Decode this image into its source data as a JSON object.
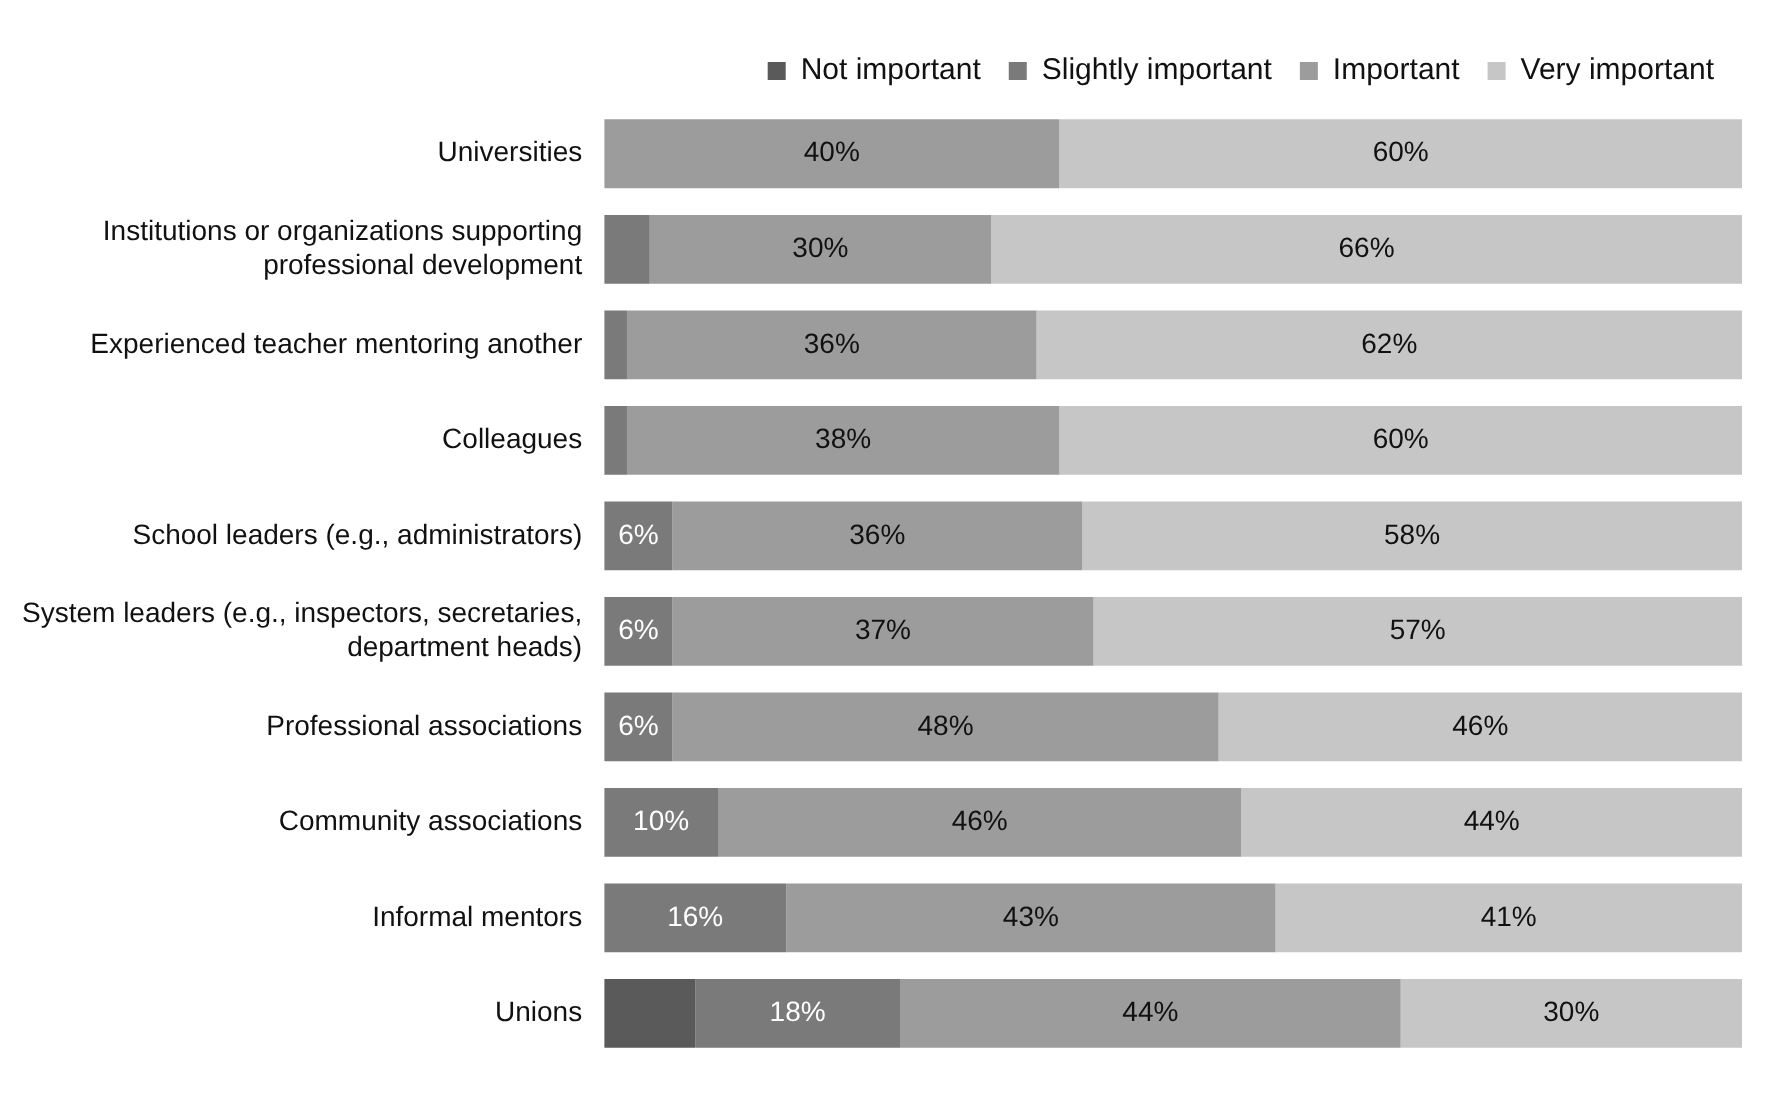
{
  "chart_data": {
    "type": "bar",
    "orientation": "horizontal",
    "stacked": true,
    "legend": "top right",
    "categories": [
      "Universities",
      "Institutions or organizations supporting professional development",
      "Experienced teacher mentoring another",
      "Colleagues",
      "School leaders (e.g., administrators)",
      "System leaders (e.g., inspectors, secretaries, department heads)",
      "Professional associations",
      "Community associations",
      "Informal mentors",
      "Unions"
    ],
    "series": [
      {
        "name": "Not important",
        "color": "#5a5a5a",
        "values": [
          0,
          0,
          0,
          0,
          0,
          0,
          0,
          0,
          0,
          8
        ],
        "value_labels": [
          null,
          null,
          null,
          null,
          null,
          null,
          null,
          null,
          null,
          null
        ]
      },
      {
        "name": "Slightly important",
        "color": "#7a7a7a",
        "values": [
          0,
          4,
          2,
          2,
          6,
          6,
          6,
          10,
          16,
          18
        ],
        "value_labels": [
          null,
          null,
          null,
          null,
          "6%",
          "6%",
          "6%",
          "10%",
          "16%",
          "18%"
        ]
      },
      {
        "name": "Important",
        "color": "#9c9c9c",
        "values": [
          40,
          30,
          36,
          38,
          36,
          37,
          48,
          46,
          43,
          44
        ],
        "value_labels": [
          "40%",
          "30%",
          "36%",
          "38%",
          "36%",
          "37%",
          "48%",
          "46%",
          "43%",
          "44%"
        ]
      },
      {
        "name": "Very important",
        "color": "#c6c6c6",
        "values": [
          60,
          66,
          62,
          60,
          58,
          57,
          46,
          44,
          41,
          30
        ],
        "value_labels": [
          "60%",
          "66%",
          "62%",
          "60%",
          "58%",
          "57%",
          "46%",
          "44%",
          "41%",
          "30%"
        ]
      }
    ]
  }
}
